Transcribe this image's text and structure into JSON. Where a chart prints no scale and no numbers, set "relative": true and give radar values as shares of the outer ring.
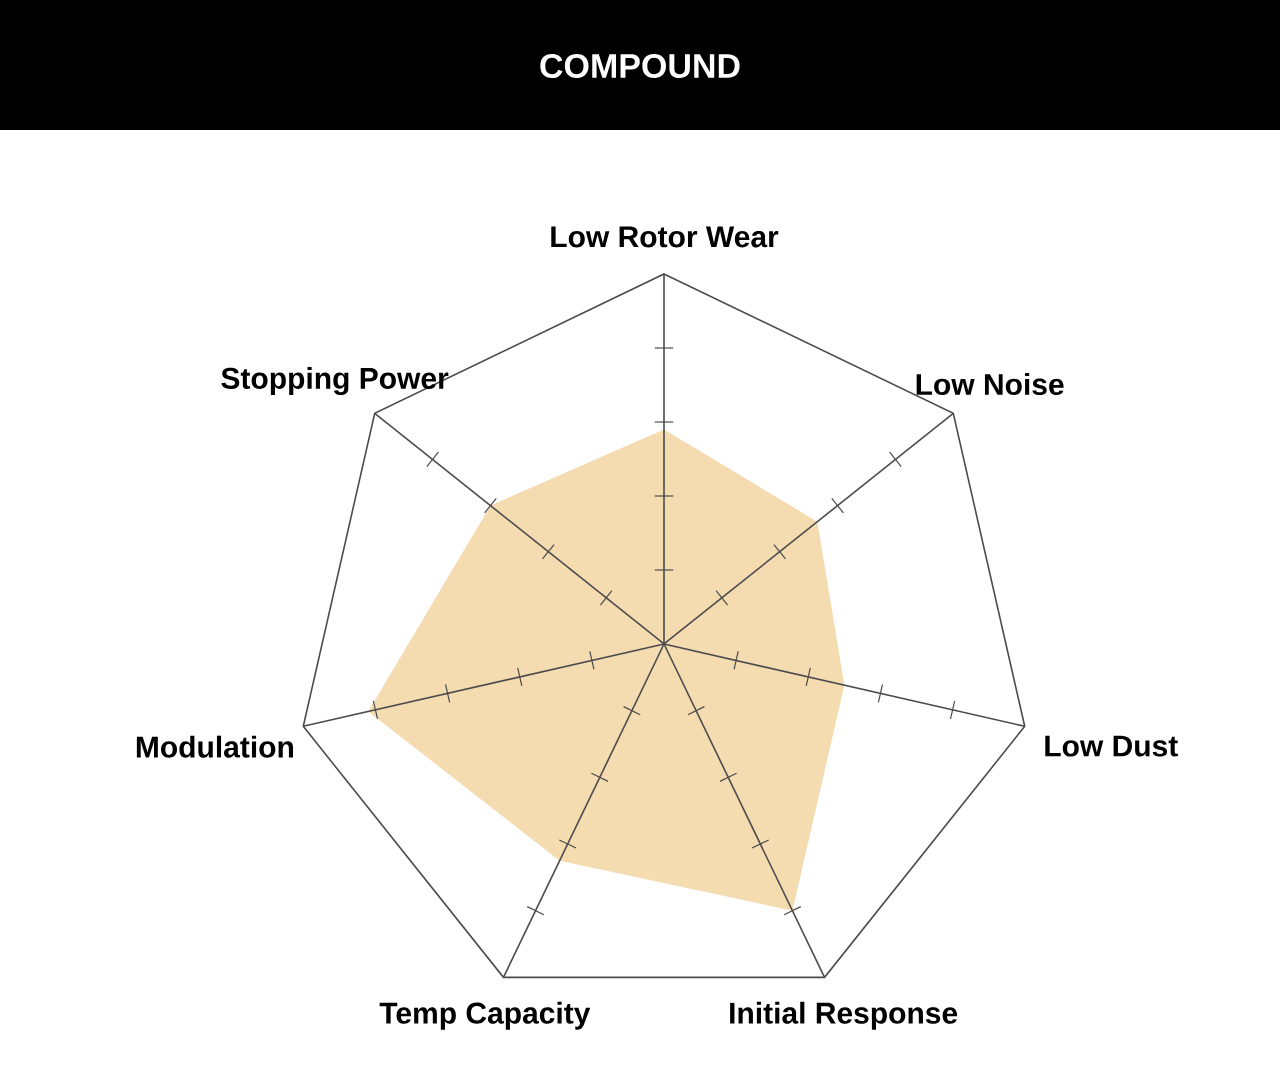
{
  "chart_data": {
    "type": "radar",
    "title": "COMPOUND",
    "relative": true,
    "categories": [
      "Low Rotor Wear",
      "Low Noise",
      "Low Dust",
      "Initial Response",
      "Temp Capacity",
      "Modulation",
      "Stopping Power"
    ],
    "series": [
      {
        "color": "#f5dbb0",
        "values": [
          0.58,
          0.53,
          0.5,
          0.8,
          0.65,
          0.82,
          0.6
        ]
      }
    ]
  }
}
